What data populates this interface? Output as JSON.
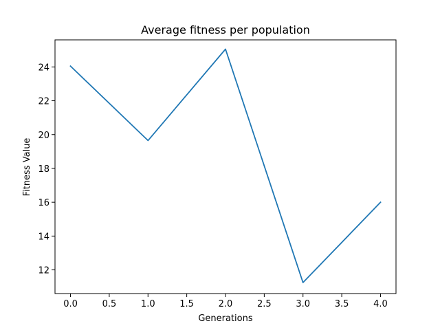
{
  "chart_data": {
    "type": "line",
    "title": "Average fitness per population",
    "xlabel": "Generations",
    "ylabel": "Fitness Value",
    "xlim": [
      -0.2,
      4.2
    ],
    "ylim": [
      10.6,
      25.6
    ],
    "x_ticks": [
      0.0,
      0.5,
      1.0,
      1.5,
      2.0,
      2.5,
      3.0,
      3.5,
      4.0
    ],
    "x_tick_labels": [
      "0.0",
      "0.5",
      "1.0",
      "1.5",
      "2.0",
      "2.5",
      "3.0",
      "3.5",
      "4.0"
    ],
    "y_ticks": [
      12,
      14,
      16,
      18,
      20,
      22,
      24
    ],
    "y_tick_labels": [
      "12",
      "14",
      "16",
      "18",
      "20",
      "22",
      "24"
    ],
    "grid": false,
    "legend": false,
    "series": [
      {
        "x": [
          0,
          1,
          2,
          3,
          4
        ],
        "values": [
          24.05,
          19.65,
          25.05,
          11.25,
          16.0
        ],
        "color": "#1f77b4"
      }
    ]
  }
}
